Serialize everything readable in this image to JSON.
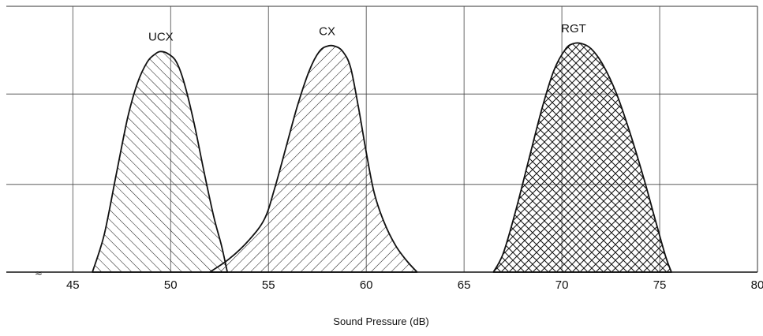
{
  "chart_data": {
    "type": "area",
    "title": "",
    "xlabel": "Sound Pressure (dB)",
    "ylabel": "",
    "xlim": [
      45,
      80
    ],
    "x_display_min": 41.6,
    "xticks": [
      45,
      50,
      55,
      60,
      65,
      70,
      75,
      80
    ],
    "xtick_labels": [
      "45",
      "50",
      "55",
      "60",
      "65",
      "70",
      "75",
      "80"
    ],
    "ylim": [
      0,
      1
    ],
    "y_gridlines": [
      0.33,
      0.67
    ],
    "grid": true,
    "axis_break_mark": "≈",
    "series": [
      {
        "name": "UCX",
        "hatch": "forward-diagonal",
        "points": [
          [
            46.0,
            0.0
          ],
          [
            46.6,
            0.14
          ],
          [
            47.2,
            0.36
          ],
          [
            47.8,
            0.58
          ],
          [
            48.3,
            0.71
          ],
          [
            48.8,
            0.79
          ],
          [
            49.2,
            0.82
          ],
          [
            49.5,
            0.83
          ],
          [
            49.9,
            0.82
          ],
          [
            50.3,
            0.79
          ],
          [
            50.7,
            0.71
          ],
          [
            51.2,
            0.56
          ],
          [
            51.7,
            0.38
          ],
          [
            52.2,
            0.21
          ],
          [
            52.6,
            0.1
          ],
          [
            52.9,
            0.0
          ]
        ]
      },
      {
        "name": "CX",
        "hatch": "backward-diagonal",
        "points": [
          [
            52.0,
            0.0
          ],
          [
            53.0,
            0.05
          ],
          [
            54.0,
            0.12
          ],
          [
            54.8,
            0.2
          ],
          [
            55.3,
            0.31
          ],
          [
            55.9,
            0.47
          ],
          [
            56.5,
            0.63
          ],
          [
            57.1,
            0.76
          ],
          [
            57.6,
            0.83
          ],
          [
            58.0,
            0.85
          ],
          [
            58.4,
            0.85
          ],
          [
            58.8,
            0.83
          ],
          [
            59.2,
            0.77
          ],
          [
            59.6,
            0.62
          ],
          [
            60.0,
            0.45
          ],
          [
            60.4,
            0.3
          ],
          [
            60.9,
            0.19
          ],
          [
            61.5,
            0.1
          ],
          [
            62.1,
            0.04
          ],
          [
            62.6,
            0.0
          ]
        ]
      },
      {
        "name": "RGT",
        "hatch": "crosshatch",
        "points": [
          [
            66.5,
            0.0
          ],
          [
            67.0,
            0.07
          ],
          [
            67.6,
            0.22
          ],
          [
            68.3,
            0.42
          ],
          [
            69.0,
            0.62
          ],
          [
            69.6,
            0.76
          ],
          [
            70.2,
            0.84
          ],
          [
            70.6,
            0.86
          ],
          [
            71.0,
            0.86
          ],
          [
            71.5,
            0.84
          ],
          [
            72.1,
            0.78
          ],
          [
            72.8,
            0.67
          ],
          [
            73.5,
            0.52
          ],
          [
            74.2,
            0.35
          ],
          [
            74.8,
            0.19
          ],
          [
            75.3,
            0.06
          ],
          [
            75.6,
            0.0
          ]
        ]
      }
    ]
  }
}
